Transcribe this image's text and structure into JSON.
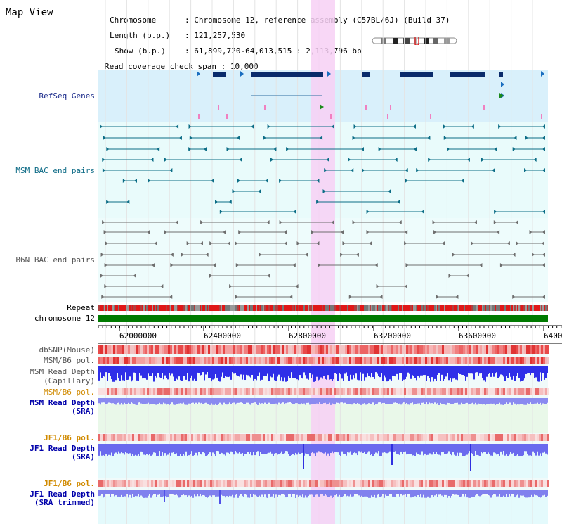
{
  "page_title": "Map View",
  "info": {
    "chromosome_label": "Chromosome",
    "chromosome_value": "Chromosome 12, reference assembly (C57BL/6J) (Build 37)",
    "length_label": "Length (b.p.)",
    "length_value": "121,257,530",
    "show_label": "Show (b.p.)",
    "show_value": "61,899,720-64,013,515 : 2,113,796 bp",
    "span_label": "Read coverage check span",
    "span_value": "10,000"
  },
  "tracks": {
    "refseq": "RefSeq Genes",
    "msm_bac": "MSM BAC end pairs",
    "b6n_bac": "B6N BAC end pairs",
    "repeat": "Repeat",
    "chromosome": "chromosome 12",
    "dbsnp": "dbSNP(Mouse)",
    "msm_b6_pol_1": "MSM/B6 pol.",
    "msm_read_depth_cap_1": "MSM Read Depth",
    "msm_read_depth_cap_2": "(Capillary)",
    "msm_b6_pol_2": "MSM/B6 pol.",
    "msm_read_depth_sra_1": "MSM Read Depth",
    "msm_read_depth_sra_2": "(SRA)",
    "jf1_b6_pol_1": "JF1/B6 pol.",
    "jf1_read_depth_sra_1": "JF1 Read Depth",
    "jf1_read_depth_sra_2": "(SRA)",
    "jf1_b6_pol_2": "JF1/B6 pol.",
    "jf1_read_depth_trim_1": "JF1 Read Depth",
    "jf1_read_depth_trim_2": "(SRA trimmed)"
  },
  "axis": {
    "ticks": [
      "62000000",
      "62400000",
      "62800000",
      "63200000",
      "63600000",
      "6400"
    ]
  },
  "colors": {
    "refseq_bg": "#d9f0fb",
    "msm_bac_bg": "#e9fbfb",
    "b6n_bac_bg": "#eefcfc",
    "highlight": "#f7d0f5",
    "gene": "#0a2b6b",
    "msm_bac": "#0c6d86",
    "b6n_bac": "#6e6e6e",
    "chromosome": "#007a00",
    "label_navy": "#1a2a8a",
    "label_teal": "#0d6b86",
    "label_gray": "#555555",
    "label_orange": "#d08a00",
    "label_blue": "#0000aa",
    "depth": "#3636e6",
    "pol_red": "#e83030"
  }
}
